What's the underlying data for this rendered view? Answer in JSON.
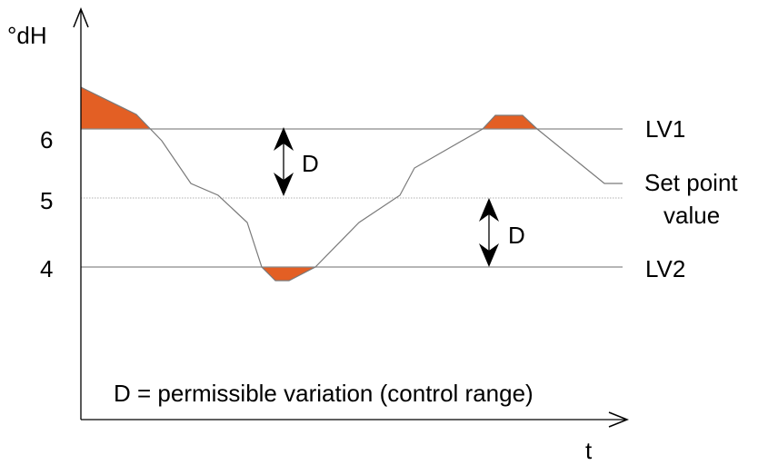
{
  "diagram": {
    "y_axis_unit": "°dH",
    "x_axis_label": "t",
    "y_ticks": [
      "6",
      "5",
      "4"
    ],
    "lines": {
      "lv1": "LV1",
      "setpoint_line1": "Set point",
      "setpoint_line2": "value",
      "lv2": "LV2"
    },
    "range_label_upper": "D",
    "range_label_lower": "D",
    "legend_text": "D = permissible variation (control range)",
    "colors": {
      "exceedance_fill": "#e35f24",
      "curve": "#7a7a7a",
      "limit_line": "#8a8a8a",
      "setpoint_line": "#b0b0b0",
      "axis": "#000000"
    }
  }
}
